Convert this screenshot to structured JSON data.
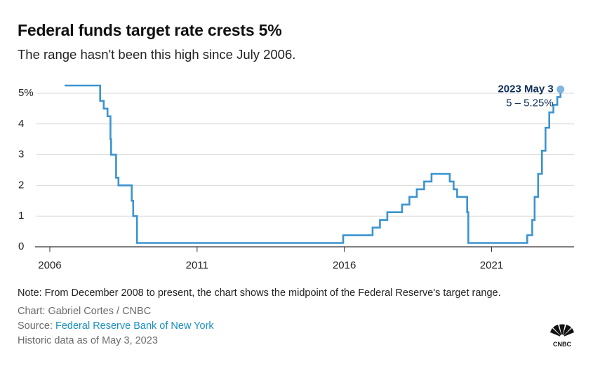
{
  "header": {
    "title": "Federal funds target rate crests 5%",
    "subtitle": "The range hasn't been this high since July 2006."
  },
  "footer": {
    "note": "Note: From December 2008 to present, the chart shows the midpoint of the Federal Reserve's target range.",
    "credit": "Chart: Gabriel Cortes / CNBC",
    "source_prefix": "Source: ",
    "source_link": "Federal Reserve Bank of New York",
    "asof": "Historic data as of May 3, 2023"
  },
  "logo": {
    "icon": "cnbc-peacock-icon",
    "text": "CNBC"
  },
  "colors": {
    "line": "#3b94d0",
    "marker": "#7fb6e2",
    "grid": "#d9d9d9",
    "axis": "#333333",
    "annotation": "#0e2f5a"
  },
  "chart_data": {
    "type": "line",
    "title": "Federal funds target rate crests 5%",
    "subtitle": "The range hasn't been this high since July 2006.",
    "xlabel": "",
    "ylabel": "",
    "xlim": [
      2005.5,
      2023.8
    ],
    "ylim": [
      0,
      5.25
    ],
    "x_ticks": [
      {
        "value": 2006,
        "label": "2006"
      },
      {
        "value": 2011,
        "label": "2011"
      },
      {
        "value": 2016,
        "label": "2016"
      },
      {
        "value": 2021,
        "label": "2021"
      }
    ],
    "y_ticks": [
      {
        "value": 0,
        "label": "0"
      },
      {
        "value": 1,
        "label": "1"
      },
      {
        "value": 2,
        "label": "2"
      },
      {
        "value": 3,
        "label": "3"
      },
      {
        "value": 4,
        "label": "4"
      },
      {
        "value": 5,
        "label": "5%"
      }
    ],
    "grid": true,
    "series": [
      {
        "name": "Federal funds target rate",
        "step": true,
        "points": [
          [
            2006.5,
            5.25
          ],
          [
            2007.71,
            4.75
          ],
          [
            2007.83,
            4.5
          ],
          [
            2007.96,
            4.25
          ],
          [
            2008.06,
            3.5
          ],
          [
            2008.08,
            3.0
          ],
          [
            2008.25,
            2.25
          ],
          [
            2008.33,
            2.0
          ],
          [
            2008.78,
            1.5
          ],
          [
            2008.83,
            1.0
          ],
          [
            2008.96,
            0.125
          ],
          [
            2015.96,
            0.375
          ],
          [
            2016.96,
            0.625
          ],
          [
            2017.21,
            0.875
          ],
          [
            2017.46,
            1.125
          ],
          [
            2017.96,
            1.375
          ],
          [
            2018.21,
            1.625
          ],
          [
            2018.46,
            1.875
          ],
          [
            2018.71,
            2.125
          ],
          [
            2018.96,
            2.375
          ],
          [
            2019.58,
            2.125
          ],
          [
            2019.71,
            1.875
          ],
          [
            2019.83,
            1.625
          ],
          [
            2020.17,
            1.125
          ],
          [
            2020.21,
            0.125
          ],
          [
            2022.21,
            0.375
          ],
          [
            2022.38,
            0.875
          ],
          [
            2022.46,
            1.625
          ],
          [
            2022.58,
            2.375
          ],
          [
            2022.71,
            3.125
          ],
          [
            2022.83,
            3.875
          ],
          [
            2022.96,
            4.375
          ],
          [
            2023.1,
            4.625
          ],
          [
            2023.23,
            4.875
          ],
          [
            2023.34,
            5.125
          ]
        ]
      }
    ],
    "highlight": {
      "x": 2023.34,
      "y": 5.125,
      "label": "2023 May 3",
      "value_label": "5 – 5.25%"
    }
  }
}
